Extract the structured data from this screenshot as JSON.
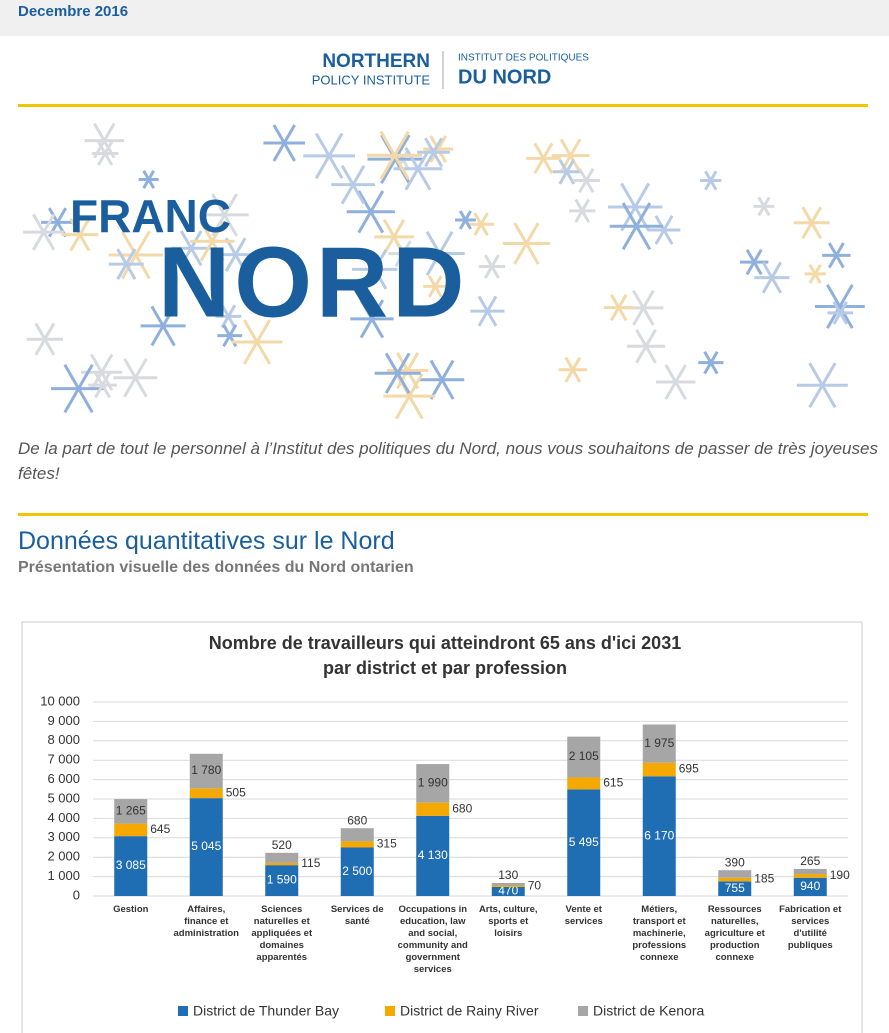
{
  "header": {
    "date": "Decembre 2016",
    "logo_en_1": "NORTHERN",
    "logo_en_2": "POLICY INSTITUTE",
    "logo_fr_1": "INSTITUT DES POLITIQUES",
    "logo_fr_2": "DU NORD"
  },
  "banner": {
    "line1": "FRANC",
    "line2": "NORD"
  },
  "greeting": "De la part de tout le personnel à l’Institut des politiques du Nord, nous vous souhaitons de passer de très joyeuses fêtes!",
  "section": {
    "title": "Données quantitatives sur le Nord",
    "subtitle": "Présentation visuelle des données du Nord ontarien"
  },
  "chart_data": {
    "type": "stacked_bar",
    "title": [
      "Nombre de travailleurs qui atteindront 65 ans d'ici 2031",
      "par district et par profession"
    ],
    "categories": [
      "Gestion",
      "Affaires, finance et administration",
      "Sciences naturelles et appliquées et domaines apparentés",
      "Services de santé",
      "Occupations in education, law and social, community and government services",
      "Arts, culture, sports et loisirs",
      "Vente et services",
      "Métiers, transport et machinerie, professions connexe",
      "Ressources naturelles, agriculture et production connexe",
      "Fabrication et services d'utilité publiques"
    ],
    "series": [
      {
        "name": "District de Thunder Bay",
        "color": "#1f6db3",
        "values": [
          3085,
          5045,
          1590,
          2500,
          4130,
          470,
          5495,
          6170,
          755,
          940
        ],
        "value_labels": [
          "3 085",
          "5 045",
          "1 590",
          "2 500",
          "4 130",
          "470",
          "5 495",
          "6 170",
          "755",
          "940"
        ]
      },
      {
        "name": "District de Rainy River",
        "color": "#f5a800",
        "values": [
          645,
          505,
          115,
          315,
          680,
          70,
          615,
          695,
          185,
          190
        ]
      },
      {
        "name": "District de Kenora",
        "color": "#a6a6a6",
        "values": [
          1265,
          1780,
          520,
          680,
          1990,
          130,
          2105,
          1975,
          390,
          265
        ],
        "value_labels": [
          "1 265",
          "1 780",
          "520",
          "680",
          "1 990",
          "130",
          "2 105",
          "1 975",
          "390",
          "265"
        ]
      }
    ],
    "ylim": [
      0,
      10000
    ],
    "yticks": [
      0,
      {
        "value": 1000,
        "label": "1 000"
      },
      {
        "value": 2000,
        "label": "2 000"
      },
      {
        "value": 3000,
        "label": "3 000"
      },
      {
        "value": 4000,
        "label": "4 000"
      },
      {
        "value": 5000,
        "label": "5 000"
      },
      {
        "value": 6000,
        "label": "6 000"
      },
      {
        "value": 7000,
        "label": "7 000"
      },
      {
        "value": 8000,
        "label": "8 000"
      },
      {
        "value": 9000,
        "label": "9 000"
      },
      {
        "value": 10000,
        "label": "10 000"
      }
    ],
    "grid": true,
    "legend": "bottom"
  }
}
